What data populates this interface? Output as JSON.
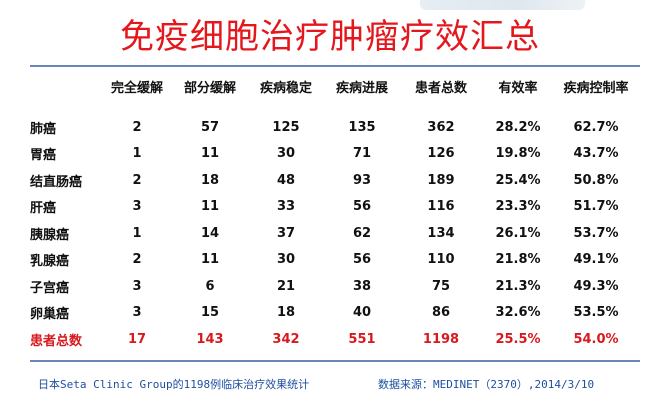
{
  "title": "免疫细胞治疗肿瘤疗效汇总",
  "table": {
    "headers": [
      "",
      "完全缓解",
      "部分缓解",
      "疾病稳定",
      "疾病进展",
      "患者总数",
      "有效率",
      "疾病控制率"
    ],
    "rows": [
      [
        "肺癌",
        "2",
        "57",
        "125",
        "135",
        "362",
        "28.2%",
        "62.7%"
      ],
      [
        "胃癌",
        "1",
        "11",
        "30",
        "71",
        "126",
        "19.8%",
        "43.7%"
      ],
      [
        "结直肠癌",
        "2",
        "18",
        "48",
        "93",
        "189",
        "25.4%",
        "50.8%"
      ],
      [
        "肝癌",
        "3",
        "11",
        "33",
        "56",
        "116",
        "23.3%",
        "51.7%"
      ],
      [
        "胰腺癌",
        "1",
        "14",
        "37",
        "62",
        "134",
        "26.1%",
        "53.7%"
      ],
      [
        "乳腺癌",
        "2",
        "11",
        "30",
        "56",
        "110",
        "21.8%",
        "49.1%"
      ],
      [
        "子宫癌",
        "3",
        "6",
        "21",
        "38",
        "75",
        "21.3%",
        "49.3%"
      ],
      [
        "卵巢癌",
        "3",
        "15",
        "18",
        "40",
        "86",
        "32.6%",
        "53.5%"
      ]
    ],
    "total": [
      "患者总数",
      "17",
      "143",
      "342",
      "551",
      "1198",
      "25.5%",
      "54.0%"
    ]
  },
  "footer": {
    "left": "日本Seta Clinic Group的1198例临床治疗效果统计",
    "right": "数据来源：MEDINET（2370）,2014/3/10"
  },
  "colors": {
    "title": "#e3171c",
    "total_row": "#d71a1f",
    "rule": "#6a86b6",
    "footer": "#1f4fa0"
  }
}
